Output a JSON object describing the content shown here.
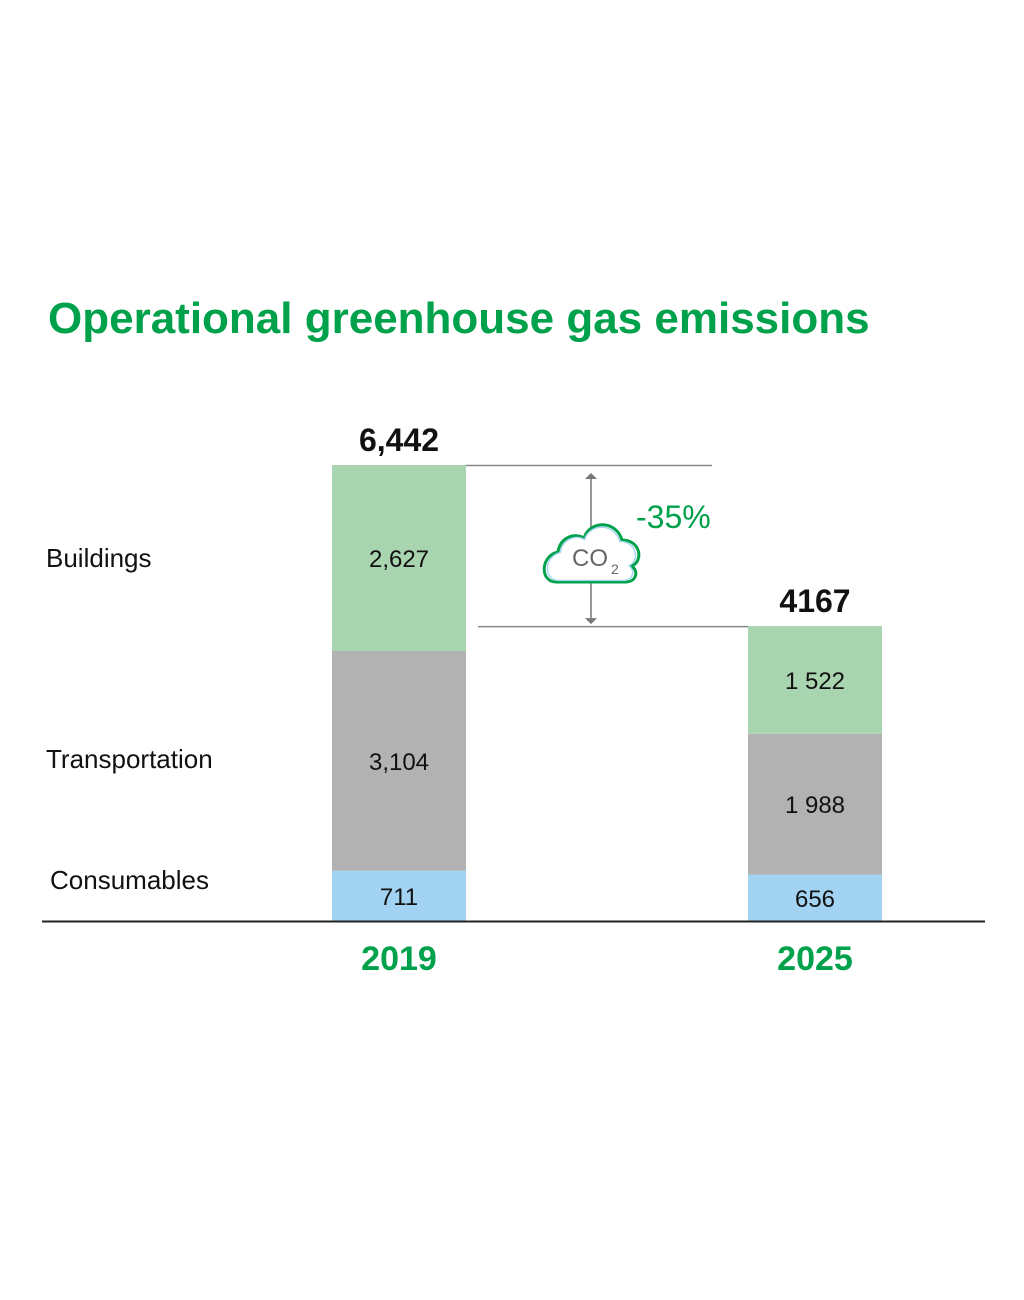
{
  "chart_data": {
    "type": "bar",
    "stacked": true,
    "title": "Operational greenhouse gas emissions",
    "categories": [
      "2019",
      "2025"
    ],
    "series": [
      {
        "name": "Consumables",
        "values": [
          711,
          656
        ],
        "labels": [
          "711",
          "656"
        ],
        "color": "#a3d3f2"
      },
      {
        "name": "Transportation",
        "values": [
          3104,
          1988
        ],
        "labels": [
          "3,104",
          "1 988"
        ],
        "color": "#b2b2b2"
      },
      {
        "name": "Buildings",
        "values": [
          2627,
          1522
        ],
        "labels": [
          "2,627",
          "1 522"
        ],
        "color": "#a8d4b0"
      }
    ],
    "totals": [
      6442,
      4167
    ],
    "total_labels": [
      "6,442",
      "4167"
    ],
    "change_label": "-35%",
    "icon": "co2-cloud-icon",
    "icon_text": "CO",
    "icon_subscript": "2",
    "legend_placement": "left",
    "grid": false,
    "accent_color": "#00a14b"
  }
}
